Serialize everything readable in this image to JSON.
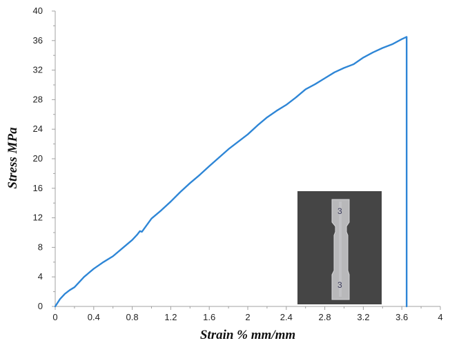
{
  "chart_data": {
    "type": "line",
    "xlabel": "Strain % mm/mm",
    "ylabel": "Stress MPa",
    "xlim": [
      0,
      4
    ],
    "ylim": [
      0,
      40
    ],
    "x_ticks": [
      "0",
      "0.4",
      "0.8",
      "1.2",
      "1.6",
      "2",
      "2.4",
      "2.8",
      "3.2",
      "3.6",
      "4"
    ],
    "y_ticks": [
      "0",
      "4",
      "8",
      "12",
      "16",
      "20",
      "24",
      "28",
      "32",
      "36",
      "40"
    ],
    "grid": false,
    "series": [
      {
        "color": "#2e86d6",
        "x": [
          0,
          0.05,
          0.1,
          0.15,
          0.2,
          0.25,
          0.3,
          0.4,
          0.5,
          0.6,
          0.7,
          0.8,
          0.85,
          0.88,
          0.9,
          1.0,
          1.1,
          1.2,
          1.3,
          1.4,
          1.5,
          1.6,
          1.8,
          2.0,
          2.1,
          2.2,
          2.3,
          2.4,
          2.5,
          2.6,
          2.7,
          2.8,
          2.9,
          3.0,
          3.1,
          3.2,
          3.3,
          3.4,
          3.5,
          3.6,
          3.65,
          3.65
        ],
        "values": [
          0,
          1.0,
          1.7,
          2.2,
          2.6,
          3.3,
          4.0,
          5.1,
          6.0,
          6.8,
          7.9,
          9.0,
          9.7,
          10.2,
          10.1,
          11.9,
          13.0,
          14.2,
          15.5,
          16.7,
          17.8,
          19.0,
          21.3,
          23.3,
          24.5,
          25.6,
          26.5,
          27.3,
          28.3,
          29.4,
          30.1,
          30.9,
          31.7,
          32.3,
          32.8,
          33.7,
          34.4,
          35.0,
          35.5,
          36.2,
          36.5,
          0
        ]
      }
    ]
  },
  "inset": {
    "label_top": "3",
    "label_bottom": "3"
  }
}
